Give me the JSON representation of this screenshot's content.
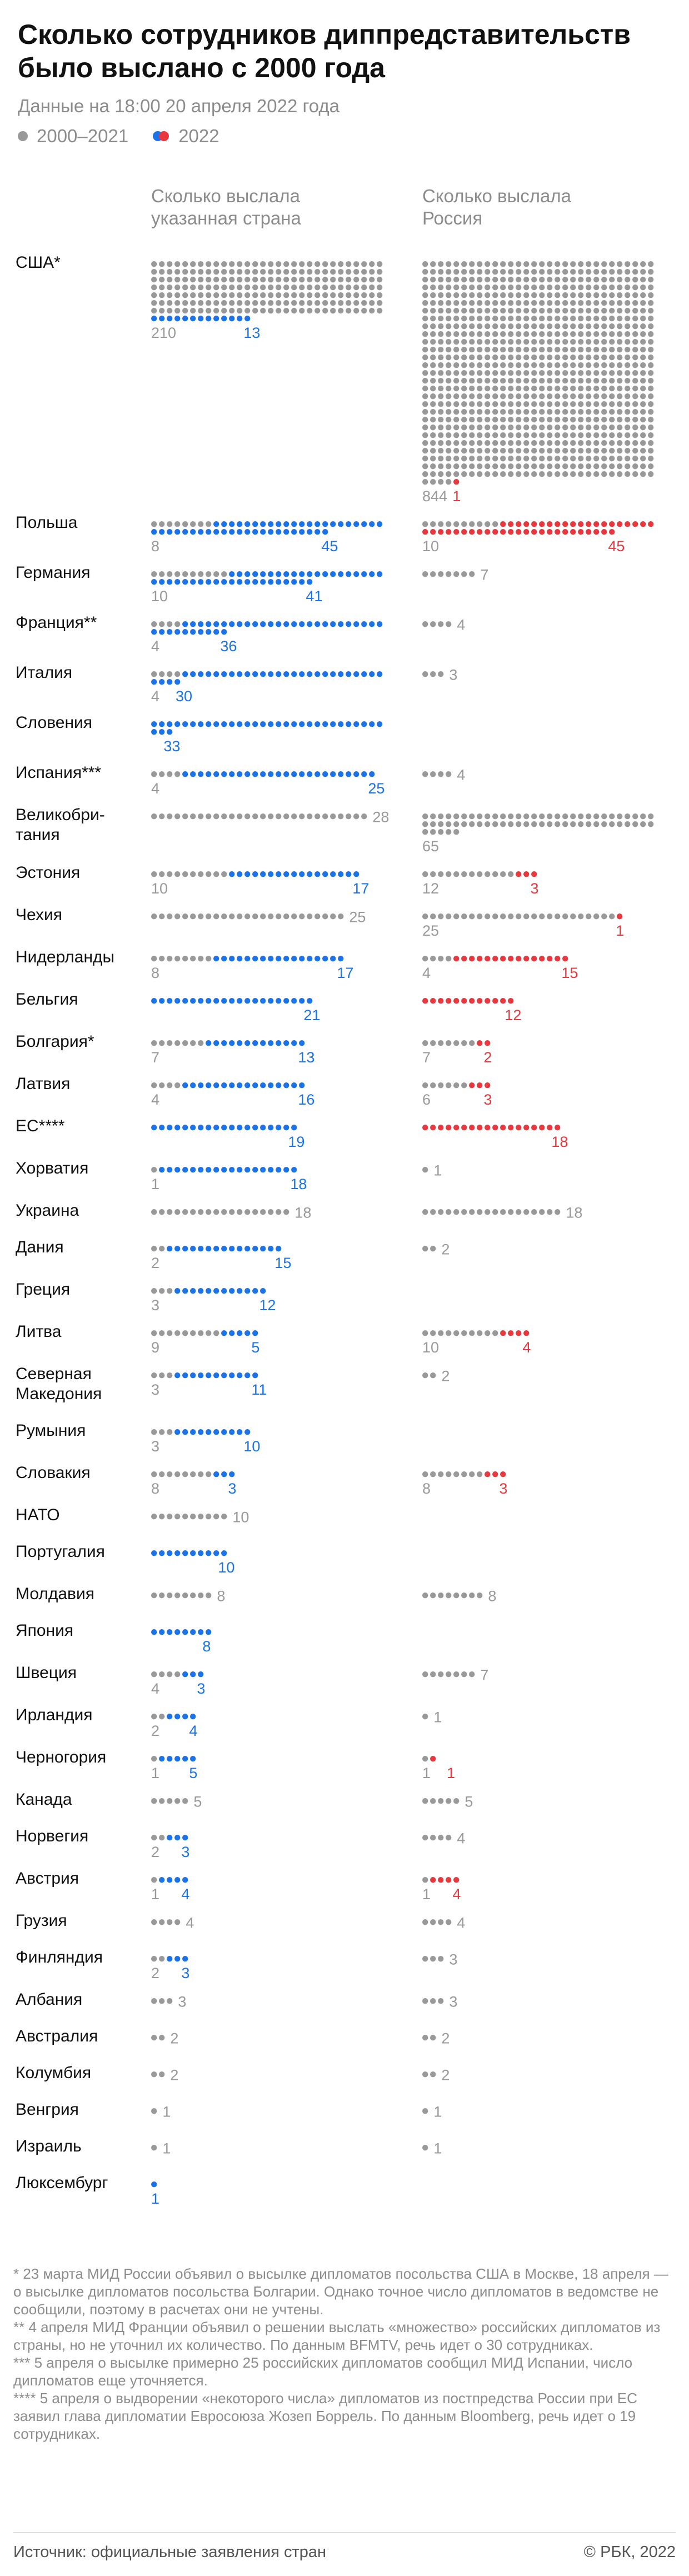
{
  "header": {
    "title": "Сколько сотрудников диппредставительств было выслано с 2000 года",
    "subtitle": "Данные на 18:00 20 апреля 2022 года"
  },
  "legend": {
    "old_label": "2000–2021",
    "new_label": "2022"
  },
  "colors": {
    "old": "#999999",
    "by_country_2022": "#1a73e8",
    "by_russia_2022": "#e8383d",
    "text": "#111111",
    "muted": "#8c8c8c"
  },
  "columns": {
    "left_header": "Сколько выслала указанная страна",
    "right_header": "Сколько выслала Россия"
  },
  "chart_data": {
    "type": "dot-matrix",
    "unit": "сотрудники",
    "title": "Сколько сотрудников диппредставительств было выслано с 2000 года",
    "series": [
      {
        "key": "country_old",
        "name": "2000–2021"
      },
      {
        "key": "country_2022",
        "name": "2022"
      },
      {
        "key": "russia_old",
        "name": "2000–2021"
      },
      {
        "key": "russia_2022",
        "name": "2022"
      }
    ],
    "rows": [
      {
        "country": "США*",
        "country_old": 210,
        "country_2022": 13,
        "russia_old": 844,
        "russia_2022": 1
      },
      {
        "country": "Польша",
        "country_old": 8,
        "country_2022": 45,
        "russia_old": 10,
        "russia_2022": 45
      },
      {
        "country": "Германия",
        "country_old": 10,
        "country_2022": 41,
        "russia_old": 7,
        "russia_2022": 0
      },
      {
        "country": "Франция**",
        "country_old": 4,
        "country_2022": 36,
        "russia_old": 4,
        "russia_2022": 0
      },
      {
        "country": "Италия",
        "country_old": 4,
        "country_2022": 30,
        "russia_old": 3,
        "russia_2022": 0
      },
      {
        "country": "Словения",
        "country_old": 0,
        "country_2022": 33,
        "russia_old": 0,
        "russia_2022": 0
      },
      {
        "country": "Испания***",
        "country_old": 4,
        "country_2022": 25,
        "russia_old": 4,
        "russia_2022": 0
      },
      {
        "country": "Великобритания",
        "country_old": 28,
        "country_2022": 0,
        "russia_old": 65,
        "russia_2022": 0
      },
      {
        "country": "Эстония",
        "country_old": 10,
        "country_2022": 17,
        "russia_old": 12,
        "russia_2022": 3
      },
      {
        "country": "Чехия",
        "country_old": 25,
        "country_2022": 0,
        "russia_old": 25,
        "russia_2022": 1
      },
      {
        "country": "Нидерланды",
        "country_old": 8,
        "country_2022": 17,
        "russia_old": 4,
        "russia_2022": 15
      },
      {
        "country": "Бельгия",
        "country_old": 0,
        "country_2022": 21,
        "russia_old": 0,
        "russia_2022": 12
      },
      {
        "country": "Болгария*",
        "country_old": 7,
        "country_2022": 13,
        "russia_old": 7,
        "russia_2022": 2
      },
      {
        "country": "Латвия",
        "country_old": 4,
        "country_2022": 16,
        "russia_old": 6,
        "russia_2022": 3
      },
      {
        "country": "ЕС****",
        "country_old": 0,
        "country_2022": 19,
        "russia_old": 0,
        "russia_2022": 18
      },
      {
        "country": "Хорватия",
        "country_old": 1,
        "country_2022": 18,
        "russia_old": 1,
        "russia_2022": 0
      },
      {
        "country": "Украина",
        "country_old": 18,
        "country_2022": 0,
        "russia_old": 18,
        "russia_2022": 0
      },
      {
        "country": "Дания",
        "country_old": 2,
        "country_2022": 15,
        "russia_old": 2,
        "russia_2022": 0
      },
      {
        "country": "Греция",
        "country_old": 3,
        "country_2022": 12,
        "russia_old": 0,
        "russia_2022": 0
      },
      {
        "country": "Литва",
        "country_old": 9,
        "country_2022": 5,
        "russia_old": 10,
        "russia_2022": 4
      },
      {
        "country": "Северная Македония",
        "country_old": 3,
        "country_2022": 11,
        "russia_old": 2,
        "russia_2022": 0
      },
      {
        "country": "Румыния",
        "country_old": 3,
        "country_2022": 10,
        "russia_old": 0,
        "russia_2022": 0
      },
      {
        "country": "Словакия",
        "country_old": 8,
        "country_2022": 3,
        "russia_old": 8,
        "russia_2022": 3
      },
      {
        "country": "НАТО",
        "country_old": 10,
        "country_2022": 0,
        "russia_old": 0,
        "russia_2022": 0
      },
      {
        "country": "Португалия",
        "country_old": 0,
        "country_2022": 10,
        "russia_old": 0,
        "russia_2022": 0
      },
      {
        "country": "Молдавия",
        "country_old": 8,
        "country_2022": 0,
        "russia_old": 8,
        "russia_2022": 0
      },
      {
        "country": "Япония",
        "country_old": 0,
        "country_2022": 8,
        "russia_old": 0,
        "russia_2022": 0
      },
      {
        "country": "Швеция",
        "country_old": 4,
        "country_2022": 3,
        "russia_old": 7,
        "russia_2022": 0
      },
      {
        "country": "Ирландия",
        "country_old": 2,
        "country_2022": 4,
        "russia_old": 1,
        "russia_2022": 0
      },
      {
        "country": "Черногория",
        "country_old": 1,
        "country_2022": 5,
        "russia_old": 1,
        "russia_2022": 1
      },
      {
        "country": "Канада",
        "country_old": 5,
        "country_2022": 0,
        "russia_old": 5,
        "russia_2022": 0
      },
      {
        "country": "Норвегия",
        "country_old": 2,
        "country_2022": 3,
        "russia_old": 4,
        "russia_2022": 0
      },
      {
        "country": "Австрия",
        "country_old": 1,
        "country_2022": 4,
        "russia_old": 1,
        "russia_2022": 4
      },
      {
        "country": "Грузия",
        "country_old": 4,
        "country_2022": 0,
        "russia_old": 4,
        "russia_2022": 0
      },
      {
        "country": "Финляндия",
        "country_old": 2,
        "country_2022": 3,
        "russia_old": 3,
        "russia_2022": 0
      },
      {
        "country": "Албания",
        "country_old": 3,
        "country_2022": 0,
        "russia_old": 3,
        "russia_2022": 0
      },
      {
        "country": "Австралия",
        "country_old": 2,
        "country_2022": 0,
        "russia_old": 2,
        "russia_2022": 0
      },
      {
        "country": "Колумбия",
        "country_old": 2,
        "country_2022": 0,
        "russia_old": 2,
        "russia_2022": 0
      },
      {
        "country": "Венгрия",
        "country_old": 1,
        "country_2022": 0,
        "russia_old": 1,
        "russia_2022": 0
      },
      {
        "country": "Израиль",
        "country_old": 1,
        "country_2022": 0,
        "russia_old": 1,
        "russia_2022": 0
      },
      {
        "country": "Люксембург",
        "country_old": 0,
        "country_2022": 1,
        "russia_old": 0,
        "russia_2022": 0
      }
    ]
  },
  "notes": [
    "* 23 марта МИД России объявил о высылке дипломатов посольства США в Москве, 18 апреля — о высылке дипломатов посольства Болгарии. Однако точное число дипломатов в ведомстве не сообщили, поэтому в расчетах они не учтены.",
    "** 4 апреля МИД Франции объявил о решении выслать «множество» российских дипломатов из страны, но не уточнил их количество. По данным BFMTV, речь идет о 30 сотрудниках.",
    "*** 5 апреля о высылке примерно 25 российских дипломатов сообщил МИД Испании, число дипломатов еще уточняется.",
    "**** 5 апреля о выдворении «некоторого числа» дипломатов из постпредства России при ЕС заявил глава дипломатии Евросоюза Жозеп Боррель. По данным Bloomberg, речь идет о 19 сотрудниках."
  ],
  "footer": {
    "source": "Источник: официальные заявления стран",
    "copyright": "© РБК, 2022"
  }
}
